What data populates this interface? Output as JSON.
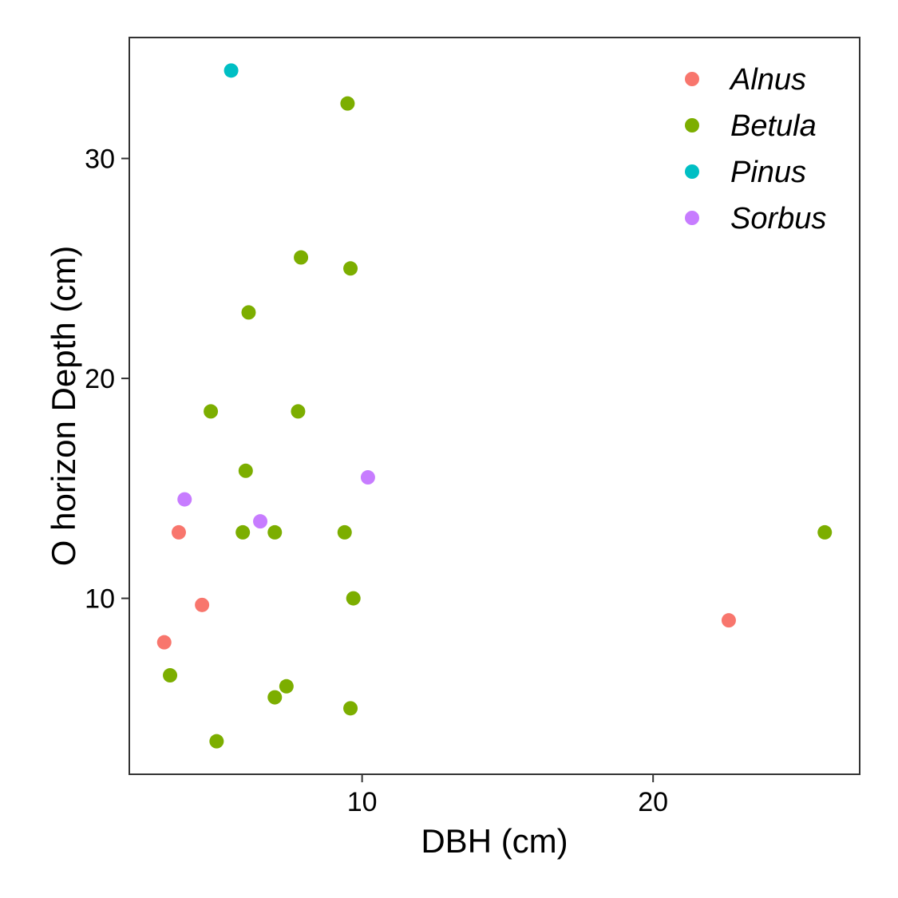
{
  "chart_data": {
    "type": "scatter",
    "title": "",
    "xlabel": "DBH (cm)",
    "ylabel": "O horizon Depth (cm)",
    "xlim": [
      2.0,
      27.1
    ],
    "ylim": [
      2.0,
      35.5
    ],
    "xticks": [
      10,
      20
    ],
    "yticks": [
      10,
      20,
      30
    ],
    "grid": false,
    "legend_position": "top-right",
    "series": [
      {
        "name": "Alnus",
        "color": "#F8766D",
        "points": [
          {
            "x": 3.7,
            "y": 13.0
          },
          {
            "x": 4.5,
            "y": 9.7
          },
          {
            "x": 3.2,
            "y": 8.0
          },
          {
            "x": 22.6,
            "y": 9.0
          }
        ]
      },
      {
        "name": "Betula",
        "color": "#7CAE00",
        "points": [
          {
            "x": 9.5,
            "y": 32.5
          },
          {
            "x": 7.9,
            "y": 25.5
          },
          {
            "x": 9.6,
            "y": 25.0
          },
          {
            "x": 6.1,
            "y": 23.0
          },
          {
            "x": 4.8,
            "y": 18.5
          },
          {
            "x": 7.8,
            "y": 18.5
          },
          {
            "x": 6.0,
            "y": 15.8
          },
          {
            "x": 5.9,
            "y": 13.0
          },
          {
            "x": 7.0,
            "y": 13.0
          },
          {
            "x": 9.4,
            "y": 13.0
          },
          {
            "x": 25.9,
            "y": 13.0
          },
          {
            "x": 9.7,
            "y": 10.0
          },
          {
            "x": 3.4,
            "y": 6.5
          },
          {
            "x": 7.4,
            "y": 6.0
          },
          {
            "x": 7.0,
            "y": 5.5
          },
          {
            "x": 9.6,
            "y": 5.0
          },
          {
            "x": 5.0,
            "y": 3.5
          }
        ]
      },
      {
        "name": "Pinus",
        "color": "#00BFC4",
        "points": [
          {
            "x": 5.5,
            "y": 34.0
          }
        ]
      },
      {
        "name": "Sorbus",
        "color": "#C77CFF",
        "points": [
          {
            "x": 3.9,
            "y": 14.5
          },
          {
            "x": 6.5,
            "y": 13.5
          },
          {
            "x": 10.2,
            "y": 15.5
          }
        ]
      }
    ]
  }
}
